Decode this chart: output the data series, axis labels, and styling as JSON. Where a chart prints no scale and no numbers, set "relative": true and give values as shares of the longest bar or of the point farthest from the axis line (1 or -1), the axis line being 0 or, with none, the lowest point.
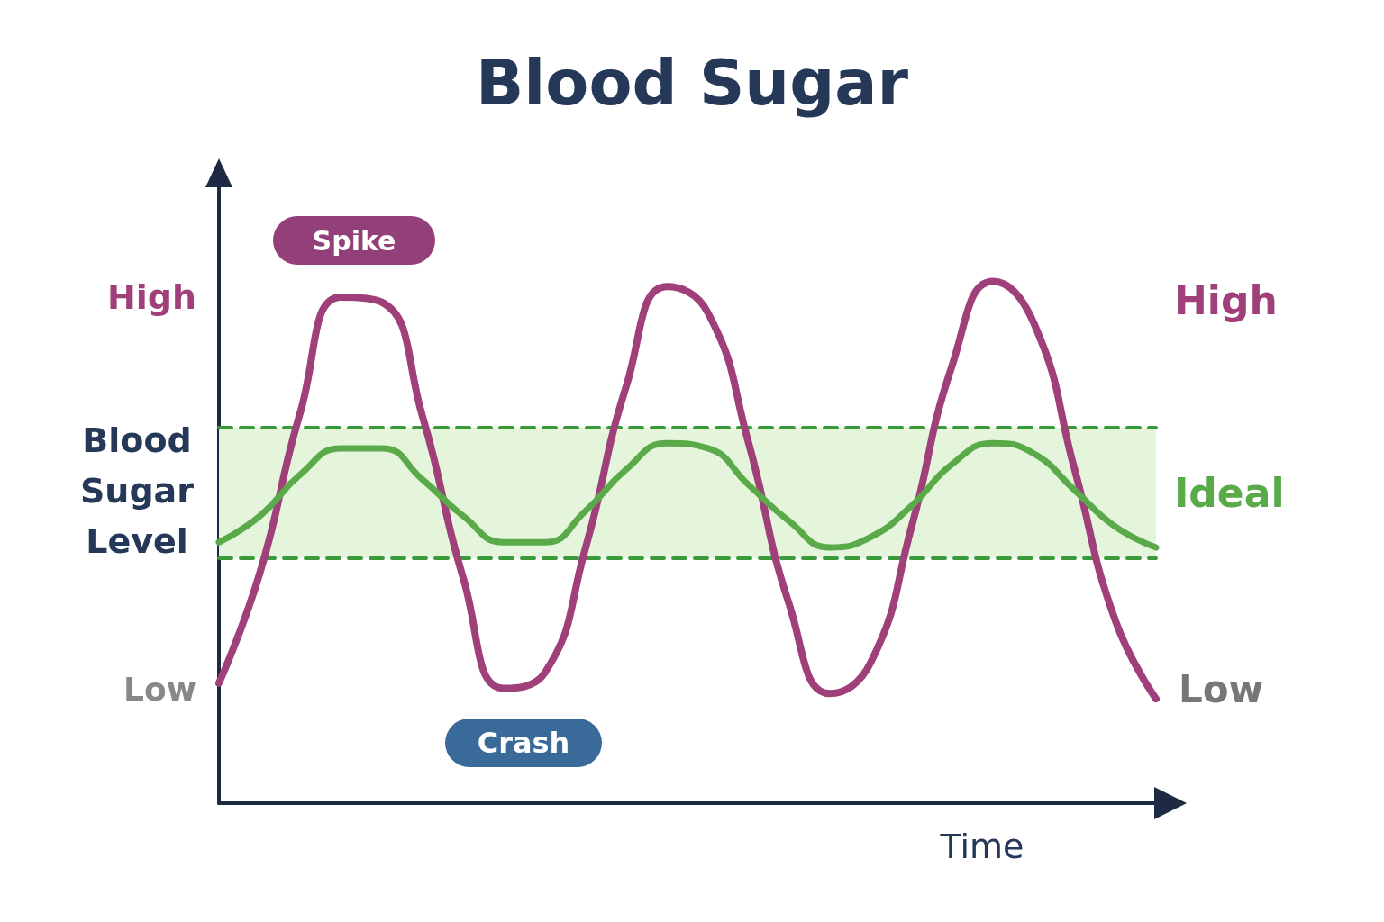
{
  "chart_data": {
    "type": "line",
    "title": "Blood Sugar",
    "xlabel": "Time",
    "ylabel": "Blood Sugar Level",
    "relative": true,
    "marker": "none",
    "line_style": "solid",
    "grid": false,
    "categories": [
      null,
      null,
      null,
      null,
      null,
      null,
      null,
      null,
      null,
      null,
      null,
      null,
      null,
      null,
      null,
      null,
      null,
      null,
      null,
      null,
      null,
      null,
      null,
      null
    ],
    "series": [
      {
        "color": "#a0407a",
        "values": [
          0.23,
          0.44,
          0.75,
          0.97,
          0.96,
          0.74,
          0.43,
          0.22,
          0.25,
          0.49,
          0.8,
          0.99,
          0.94,
          0.69,
          0.38,
          0.21,
          0.27,
          0.53,
          0.84,
          1.0,
          0.92,
          0.64,
          0.35,
          0.2
        ]
      },
      {
        "color": "#5aaa4a",
        "values": [
          0.5,
          0.55,
          0.63,
          0.68,
          0.68,
          0.62,
          0.55,
          0.5,
          0.5,
          0.56,
          0.64,
          0.69,
          0.68,
          0.61,
          0.54,
          0.49,
          0.51,
          0.57,
          0.65,
          0.69,
          0.67,
          0.6,
          0.53,
          0.49
        ]
      }
    ],
    "ref_lines": [
      {
        "axis": "y",
        "value": 0.72,
        "color": "#3a9a3a",
        "line_style": "dashed"
      },
      {
        "axis": "y",
        "value": 0.47,
        "color": "#3a9a3a",
        "line_style": "dashed"
      }
    ],
    "bands": [
      {
        "axis": "y",
        "from": 0.47,
        "to": 0.72,
        "label": "Ideal",
        "color": "#e4f5dc"
      }
    ],
    "annotations": [
      "Spike",
      "Crash",
      "High",
      "Low",
      "High",
      "Low"
    ]
  }
}
